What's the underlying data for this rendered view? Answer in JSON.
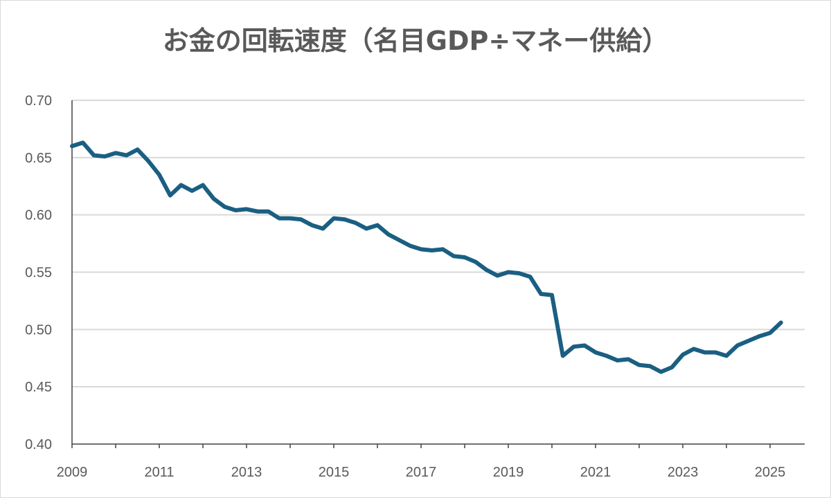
{
  "chart_data": {
    "type": "line",
    "title": "お金の回転速度（名目GDP÷マネー供給）",
    "xlabel": "",
    "ylabel": "",
    "ylim": [
      0.4,
      0.7
    ],
    "yticks": [
      "0.70",
      "0.65",
      "0.60",
      "0.55",
      "0.50",
      "0.45",
      "0.40"
    ],
    "yticks_values": [
      0.7,
      0.65,
      0.6,
      0.55,
      0.5,
      0.45,
      0.4
    ],
    "xticks": [
      "2009",
      "2011",
      "2013",
      "2015",
      "2017",
      "2019",
      "2021",
      "2023",
      "2025"
    ],
    "xlim": [
      2009,
      2025.75
    ],
    "grid": true,
    "line_color": "#1a5f82",
    "series": [
      {
        "name": "お金の回転速度",
        "x_start": 2009,
        "x_step": 0.25,
        "values": [
          0.66,
          0.663,
          0.652,
          0.651,
          0.654,
          0.652,
          0.657,
          0.647,
          0.635,
          0.617,
          0.626,
          0.621,
          0.626,
          0.614,
          0.607,
          0.604,
          0.605,
          0.603,
          0.603,
          0.597,
          0.597,
          0.596,
          0.591,
          0.588,
          0.597,
          0.596,
          0.593,
          0.588,
          0.591,
          0.583,
          0.578,
          0.573,
          0.57,
          0.569,
          0.57,
          0.564,
          0.563,
          0.559,
          0.552,
          0.547,
          0.55,
          0.549,
          0.546,
          0.531,
          0.53,
          0.477,
          0.485,
          0.486,
          0.48,
          0.477,
          0.473,
          0.474,
          0.469,
          0.468,
          0.463,
          0.467,
          0.478,
          0.483,
          0.48,
          0.48,
          0.477,
          0.486,
          0.49,
          0.494,
          0.497,
          0.506
        ]
      }
    ]
  }
}
